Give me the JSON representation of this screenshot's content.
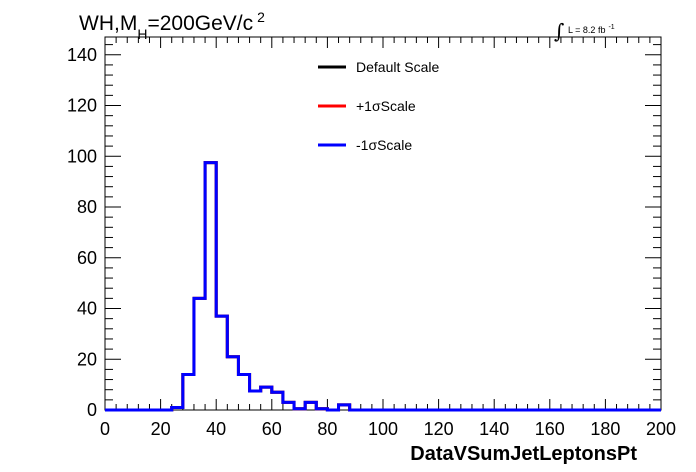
{
  "chart_data": {
    "type": "line",
    "title": {
      "main": "WH,M",
      "subscript": "H",
      "rest": "=200GeV/c",
      "superscript": "2"
    },
    "luminosity": {
      "integral_symbol": "∫",
      "text": "L = 8.2 fb",
      "superscript": "-1"
    },
    "xlabel": "DataVSumJetLeptonsPt",
    "ylabel": "",
    "xlim": [
      0,
      200
    ],
    "ylim": [
      0,
      147
    ],
    "x_ticks": [
      0,
      20,
      40,
      60,
      80,
      100,
      120,
      140,
      160,
      180,
      200
    ],
    "x_tick_labels": [
      "0",
      "20",
      "40",
      "60",
      "80",
      "100",
      "120",
      "140",
      "160",
      "180",
      "200"
    ],
    "y_ticks": [
      0,
      20,
      40,
      60,
      80,
      100,
      120,
      140
    ],
    "y_tick_labels": [
      "0",
      "20",
      "40",
      "60",
      "80",
      "100",
      "120",
      "140"
    ],
    "bin_edges": [
      0,
      4,
      8,
      12,
      16,
      20,
      24,
      28,
      32,
      36,
      40,
      44,
      48,
      52,
      56,
      60,
      64,
      68,
      72,
      76,
      80,
      84,
      88,
      92,
      96,
      100,
      104,
      108,
      112,
      116,
      120,
      124,
      128,
      132,
      136,
      140,
      144,
      148,
      152,
      156,
      160,
      164,
      168,
      172,
      176,
      180,
      184,
      188,
      192,
      196,
      200
    ],
    "legend_position": "top-center",
    "series": [
      {
        "name": "Default Scale",
        "color": "#000000",
        "values": [
          0,
          0,
          0,
          0,
          0,
          0,
          1,
          14,
          44,
          97.5,
          37,
          21,
          14,
          7.5,
          9,
          7,
          3,
          0.5,
          3,
          0.5,
          0,
          2,
          0,
          0,
          0,
          0,
          0,
          0,
          0,
          0,
          0,
          0,
          0,
          0,
          0,
          0,
          0,
          0,
          0,
          0,
          0,
          0,
          0,
          0,
          0,
          0,
          0,
          0,
          0,
          0
        ]
      },
      {
        "name": "+1σScale",
        "color": "#ff0000",
        "values": [
          0,
          0,
          0,
          0,
          0,
          0,
          1,
          14,
          44,
          97.5,
          37,
          21,
          14,
          7.5,
          9,
          7,
          3,
          0.5,
          3,
          0.5,
          0,
          2,
          0,
          0,
          0,
          0,
          0,
          0,
          0,
          0,
          0,
          0,
          0,
          0,
          0,
          0,
          0,
          0,
          0,
          0,
          0,
          0,
          0,
          0,
          0,
          0,
          0,
          0,
          0,
          0
        ]
      },
      {
        "name": "-1σScale",
        "color": "#0000ff",
        "values": [
          0,
          0,
          0,
          0,
          0,
          0,
          1,
          14,
          44,
          97.5,
          37,
          21,
          14,
          7.5,
          9,
          7,
          3,
          0.5,
          3,
          0.5,
          0,
          2,
          0,
          0,
          0,
          0,
          0,
          0,
          0,
          0,
          0,
          0,
          0,
          0,
          0,
          0,
          0,
          0,
          0,
          0,
          0,
          0,
          0,
          0,
          0,
          0,
          0,
          0,
          0,
          0
        ]
      }
    ]
  }
}
